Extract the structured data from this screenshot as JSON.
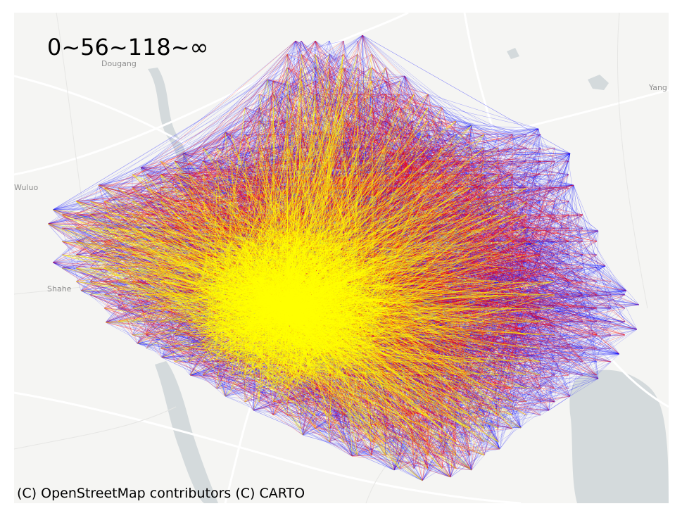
{
  "map": {
    "legend_text": "0~56~118~∞",
    "attribution": "(C) OpenStreetMap contributors (C) CARTO",
    "place_labels": {
      "dougang": "Dougang",
      "wuluo": "Wuluo",
      "shahe": "Shahe",
      "yang": "Yang"
    },
    "colors": {
      "background": "#f5f5f3",
      "water": "#d4dadc",
      "road": "#ffffff",
      "low": "#0000ff",
      "mid": "#ff0000",
      "high": "#ffff00"
    }
  }
}
